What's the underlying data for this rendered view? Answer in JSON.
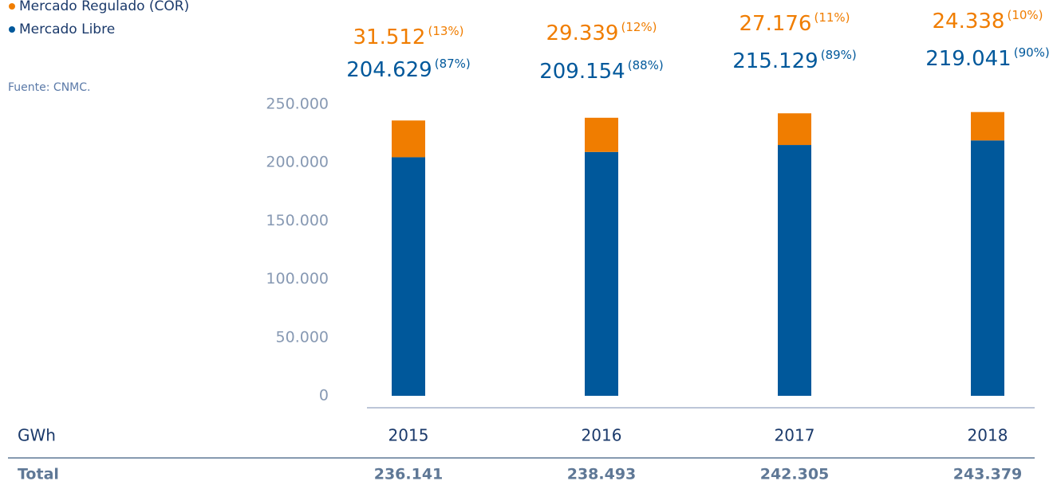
{
  "chart_data": {
    "type": "stacked_bar",
    "categories": [
      "2015",
      "2016",
      "2017",
      "2018"
    ],
    "x_label": "GWh",
    "source": "Fuente: CNMC.",
    "series": [
      {
        "name": "Mercado Libre",
        "color": "#00589b",
        "values": [
          204629,
          209154,
          215129,
          219041
        ],
        "value_labels": [
          "204.629",
          "209.154",
          "215.129",
          "219.041"
        ],
        "share_labels": [
          "(87%)",
          "(88%)",
          "(89%)",
          "(90%)"
        ]
      },
      {
        "name": "Mercado Regulado (COR)",
        "color": "#f07d00",
        "values": [
          31512,
          29339,
          27176,
          24338
        ],
        "value_labels": [
          "31.512",
          "29.339",
          "27.176",
          "24.338"
        ],
        "share_labels": [
          "(13%)",
          "(12%)",
          "(11%)",
          "(10%)"
        ]
      }
    ],
    "totals": {
      "label": "Total",
      "values": [
        236141,
        238493,
        242305,
        243379
      ],
      "value_labels": [
        "236.141",
        "238.493",
        "242.305",
        "243.379"
      ]
    },
    "ylim": [
      0,
      250000
    ],
    "yticks": [
      0,
      {
        "value": 50000,
        "label": "50.000"
      },
      {
        "value": 100000,
        "label": "100.000"
      },
      {
        "value": 150000,
        "label": "150.000"
      },
      {
        "value": 200000,
        "label": "200.000"
      },
      {
        "value": 250000,
        "label": "250.000"
      }
    ]
  }
}
